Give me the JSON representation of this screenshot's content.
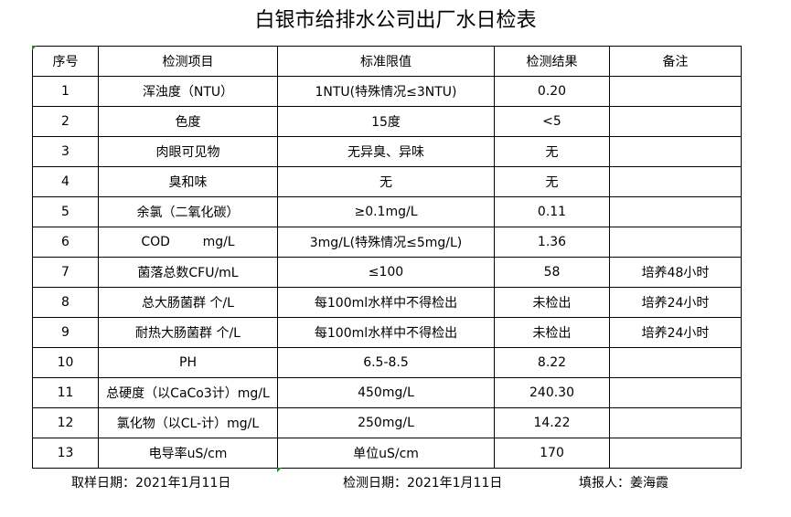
{
  "header": {
    "title": "白银市给排水公司出厂水日检表"
  },
  "table": {
    "header": [
      "序号",
      "检测项目",
      "标准限值",
      "检测结果",
      "备注"
    ],
    "rows": [
      [
        "1",
        "浑浊度（NTU）",
        "1NTU(特殊情况≤3NTU)",
        "0.20"
      ],
      [
        "2",
        "色度",
        "15度",
        "<5"
      ],
      [
        "3",
        "肉眼可见物",
        "无异臭、异味",
        "无"
      ],
      [
        "4",
        "臭和味",
        "无",
        "无"
      ],
      [
        "5",
        "余氯（二氧化碳）",
        "≥0.1mg/L",
        "0.11"
      ],
      [
        "6",
        "COD        mg/L",
        "3mg/L(特殊情况≤5mg/L)",
        "1.36"
      ],
      [
        "7",
        "菌落总数CFU/mL",
        "≤100",
        "58",
        "培养48小时"
      ],
      [
        "8",
        "总大肠菌群 个/L",
        "每100ml水样中不得检出",
        "未检出",
        "培养24小时"
      ],
      [
        "9",
        "耐热大肠菌群 个/L",
        "每100ml水样中不得检出",
        "未检出",
        "培养24小时"
      ],
      [
        "10",
        "PH",
        "6.5-8.5",
        "8.22"
      ],
      [
        "11",
        "总硬度（以CaCo3计）mg/L",
        "450mg/L",
        "240.30"
      ],
      [
        "12",
        "氯化物（以CL-计）mg/L",
        "250mg/L",
        "14.22"
      ],
      [
        "13",
        "电导率uS/cm",
        "单位uS/cm",
        "170"
      ]
    ]
  },
  "footer": {
    "sample_date": "取样日期：2021年1月11日",
    "test_date": "检测日期：2021年1月11日",
    "reporter": "填报人：姜海霞"
  }
}
